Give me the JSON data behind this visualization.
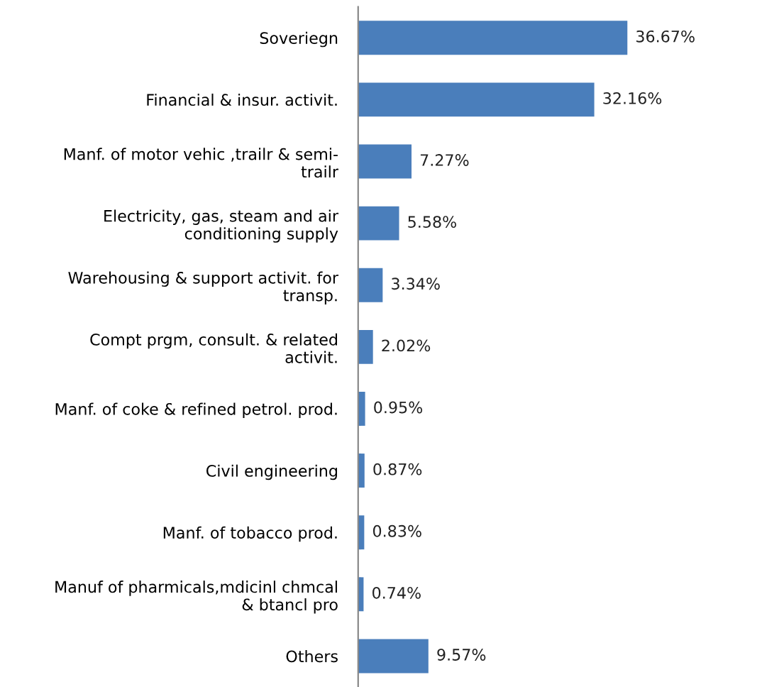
{
  "chart_data": {
    "type": "bar",
    "orientation": "horizontal",
    "categories": [
      "Soveriegn",
      "Financial & insur. activit.",
      "Manf. of motor vehic ,trailr & semi-\ntrailr",
      "Electricity, gas, steam and air\nconditioning supply",
      "Warehousing & support activit. for\ntransp.",
      "Compt prgm, consult. & related\nactivit.",
      "Manf. of coke & refined petrol. prod.",
      "Civil engineering",
      "Manf. of tobacco prod.",
      "Manuf of pharmicals,mdicinl chmcal\n& btancl pro",
      "Others"
    ],
    "values": [
      36.67,
      32.16,
      7.27,
      5.58,
      3.34,
      2.02,
      0.95,
      0.87,
      0.83,
      0.74,
      9.57
    ],
    "value_labels": [
      "36.67%",
      "32.16%",
      "7.27%",
      "5.58%",
      "3.34%",
      "2.02%",
      "0.95%",
      "0.87%",
      "0.83%",
      "0.74%",
      "9.57%"
    ],
    "color": "#4a7ebb",
    "grid": false,
    "legend": false,
    "tick_labels": "y"
  }
}
